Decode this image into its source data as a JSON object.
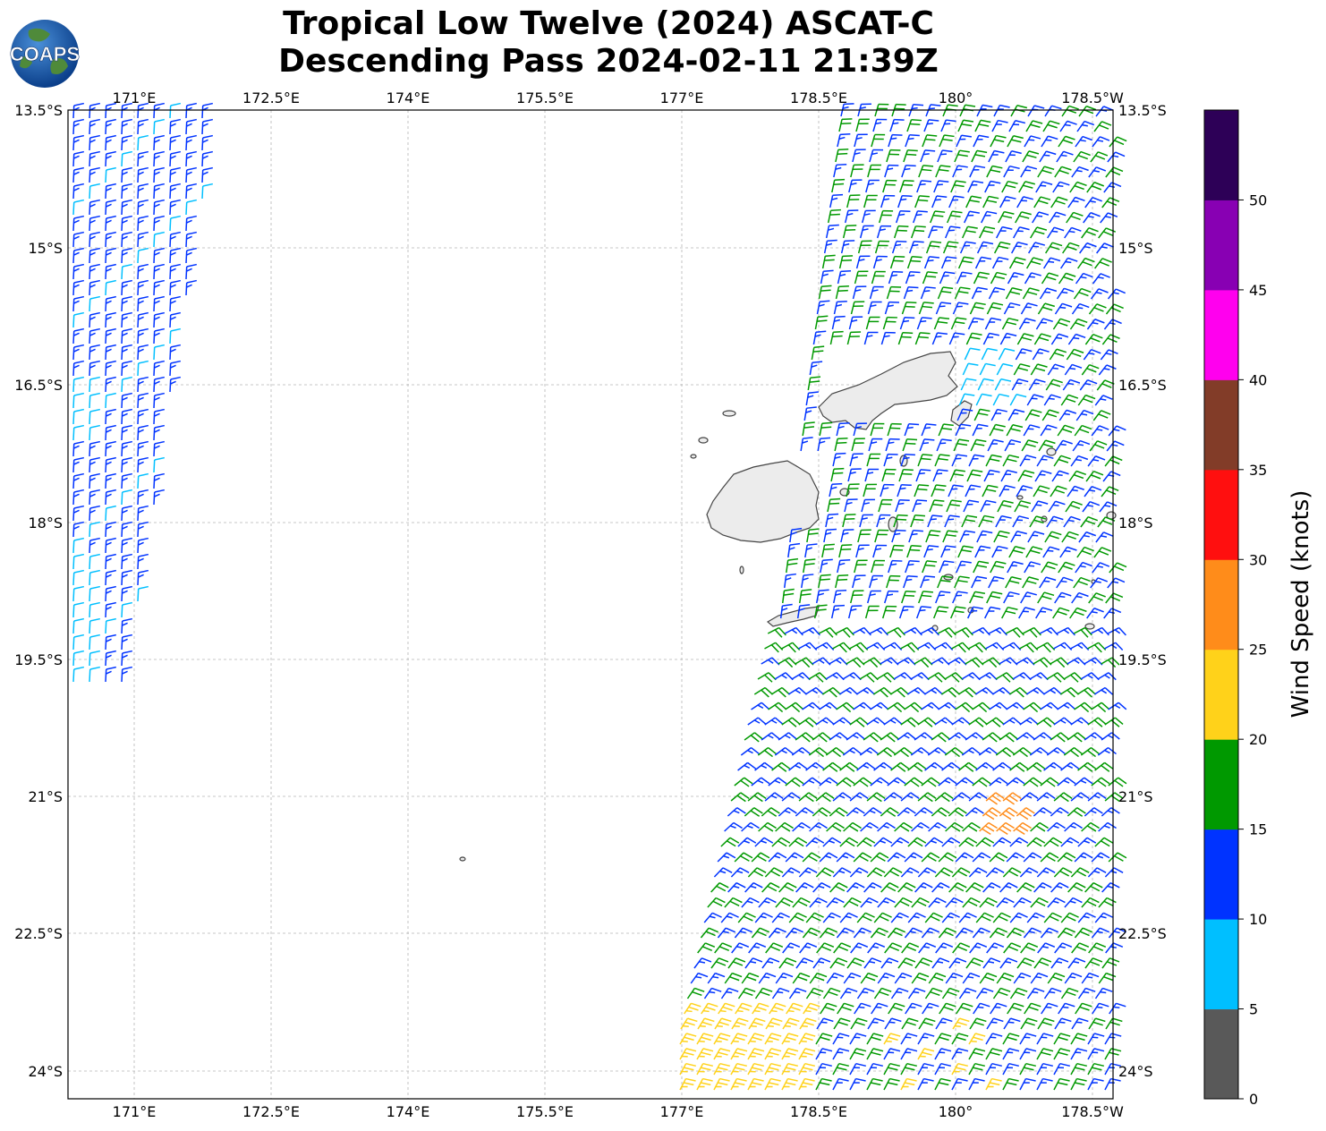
{
  "title": {
    "line1": "Tropical Low Twelve (2024) ASCAT-C",
    "line2": "Descending Pass 2024-02-11 21:39Z"
  },
  "logo": {
    "text": "COAPS",
    "icon": "globe-logo-icon"
  },
  "map": {
    "lon_ticks": [
      "171°E",
      "172.5°E",
      "174°E",
      "175.5°E",
      "177°E",
      "178.5°E",
      "180°",
      "178.5°W"
    ],
    "lat_ticks": [
      "13.5°S",
      "15°S",
      "16.5°S",
      "18°S",
      "19.5°S",
      "21°S",
      "22.5°S",
      "24°S"
    ],
    "grid": "dashed",
    "land_fill": "#ececec",
    "coast_color": "#444444"
  },
  "colorbar": {
    "label": "Wind Speed (knots)",
    "ticks": [
      "0",
      "5",
      "10",
      "15",
      "20",
      "25",
      "30",
      "35",
      "40",
      "45",
      "50"
    ],
    "bins": [
      {
        "from": 0,
        "to": 5,
        "color": "#595959"
      },
      {
        "from": 5,
        "to": 10,
        "color": "#00bfff"
      },
      {
        "from": 10,
        "to": 15,
        "color": "#0033ff"
      },
      {
        "from": 15,
        "to": 20,
        "color": "#009900"
      },
      {
        "from": 20,
        "to": 25,
        "color": "#ffd21a"
      },
      {
        "from": 25,
        "to": 30,
        "color": "#ff8c1a"
      },
      {
        "from": 30,
        "to": 35,
        "color": "#ff0f0f"
      },
      {
        "from": 35,
        "to": 40,
        "color": "#823c28"
      },
      {
        "from": 40,
        "to": 45,
        "color": "#ff00ee"
      },
      {
        "from": 45,
        "to": 50,
        "color": "#8800b3"
      },
      {
        "from": 50,
        "to": 55,
        "color": "#2d0057"
      }
    ]
  }
}
